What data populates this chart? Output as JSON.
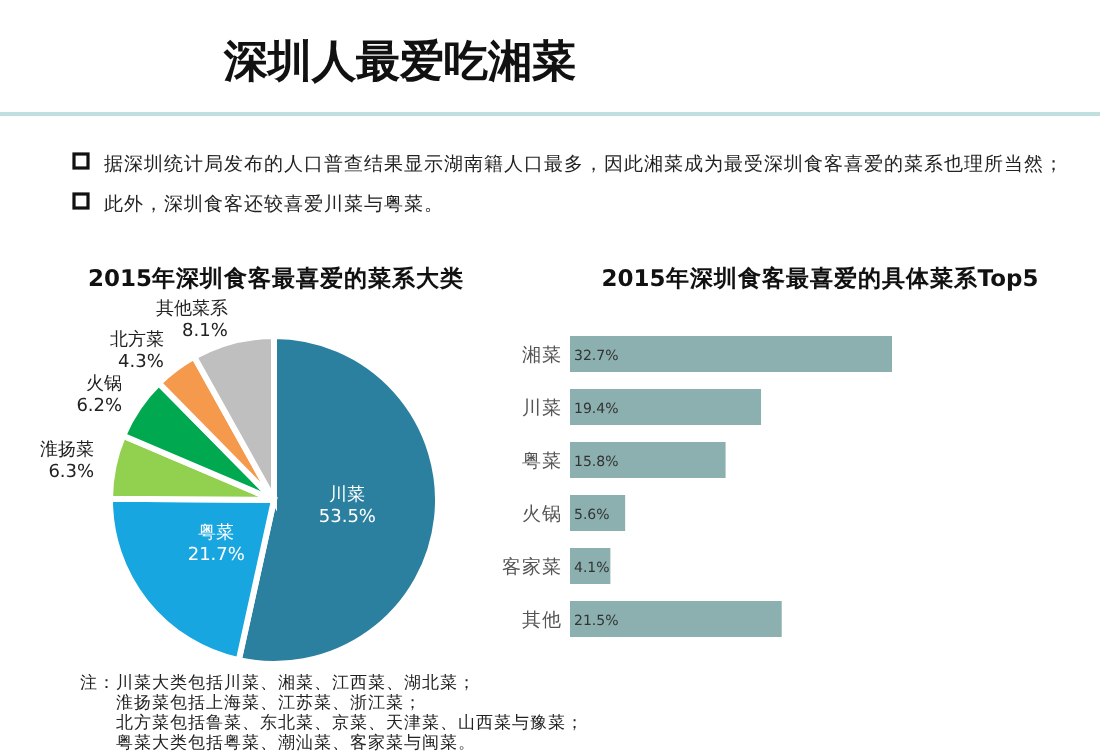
{
  "chart_data": [
    {
      "type": "other",
      "title": "深圳人最爱吃湘菜",
      "annotations": [
        "据深圳统计局发布的人口普查结果显示湖南籍人口最多，因此湘菜成为最受深圳食客喜爱的菜系也理所当然；",
        "此外，深圳食客还较喜爱川菜与粤菜。"
      ]
    },
    {
      "type": "pie",
      "title": "2015年深圳食客最喜爱的菜系大类",
      "categories": [
        "川菜",
        "粤菜",
        "淮扬菜",
        "火锅",
        "北方菜",
        "其他菜系"
      ],
      "values": [
        53.5,
        21.7,
        6.3,
        6.2,
        4.3,
        8.1
      ],
      "value_labels": [
        "53.5%",
        "21.7%",
        "6.3%",
        "6.2%",
        "4.3%",
        "8.1%"
      ],
      "colors": [
        "#2b7f9f",
        "#17a6df",
        "#92d050",
        "#00a850",
        "#f59a4c",
        "#bfbfbf"
      ],
      "annotations": [
        "注：川菜大类包括川菜、湘菜、江西菜、湖北菜；",
        "淮扬菜包括上海菜、江苏菜、浙江菜；",
        "北方菜包括鲁菜、东北菜、京菜、天津菜、山西菜与豫菜；",
        "粤菜大类包括粤菜、潮汕菜、客家菜与闽菜。"
      ]
    },
    {
      "type": "bar",
      "orientation": "horizontal",
      "title": "2015年深圳食客最喜爱的具体菜系Top5",
      "categories": [
        "湘菜",
        "川菜",
        "粤菜",
        "火锅",
        "客家菜",
        "其他"
      ],
      "values": [
        32.7,
        19.4,
        15.8,
        5.6,
        4.1,
        21.5
      ],
      "value_labels": [
        "32.7%",
        "19.4%",
        "15.8%",
        "5.6%",
        "4.1%",
        "21.5%"
      ],
      "color": "#8cb0b0"
    }
  ]
}
